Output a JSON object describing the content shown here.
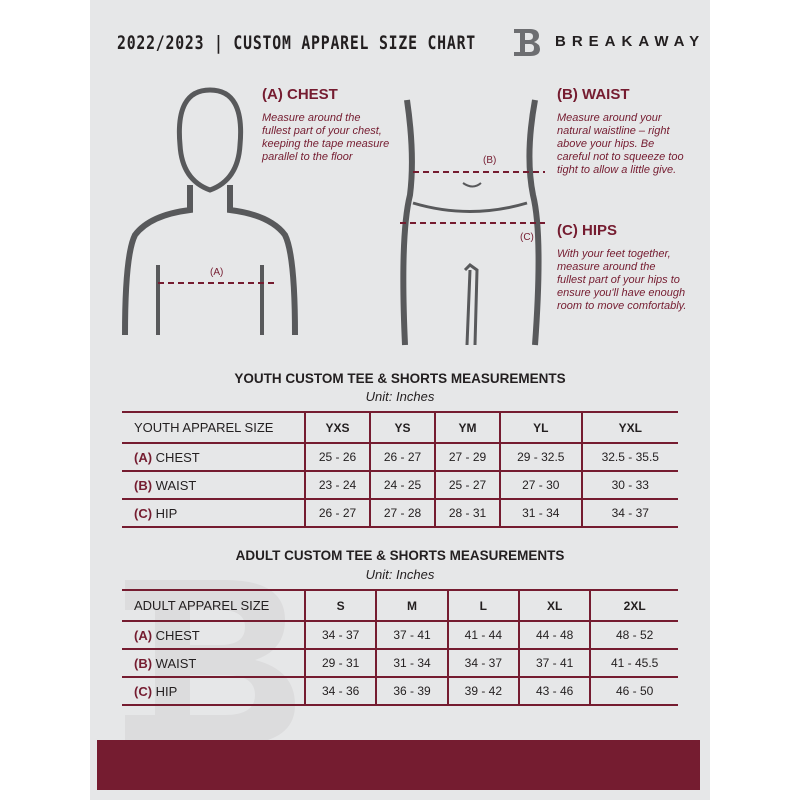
{
  "header": {
    "title": "2022/2023  |  CUSTOM APPAREL SIZE CHART",
    "brand": "BREAKAWAY"
  },
  "measures": [
    {
      "heading": "(A) CHEST",
      "desc": "Measure around the fullest part of your chest, keeping the tape measure parallel to the floor",
      "mark": "(A)"
    },
    {
      "heading": "(B) WAIST",
      "desc": "Measure around your natural waistline – right above your hips. Be careful not to squeeze too tight to allow a little give.",
      "mark": "(B)"
    },
    {
      "heading": "(C) HIPS",
      "desc": "With your feet together, measure around the fullest part of your hips to ensure you'll have enough room to move comfortably.",
      "mark": "(C)"
    }
  ],
  "youth": {
    "title": "YOUTH CUSTOM TEE & SHORTS MEASUREMENTS",
    "unit": "Unit: Inches",
    "size_label": "YOUTH APPAREL SIZE",
    "sizes": [
      "YXS",
      "YS",
      "YM",
      "YL",
      "YXL"
    ],
    "rows": [
      {
        "letter": "(A)",
        "name": "CHEST",
        "values": [
          "25 - 26",
          "26 - 27",
          "27 - 29",
          "29 - 32.5",
          "32.5 - 35.5"
        ]
      },
      {
        "letter": "(B)",
        "name": "WAIST",
        "values": [
          "23 - 24",
          "24 - 25",
          "25 - 27",
          "27 - 30",
          "30 - 33"
        ]
      },
      {
        "letter": "(C)",
        "name": "HIP",
        "values": [
          "26 - 27",
          "27 - 28",
          "28 - 31",
          "31 - 34",
          "34 - 37"
        ]
      }
    ]
  },
  "adult": {
    "title": "ADULT CUSTOM TEE & SHORTS MEASUREMENTS",
    "unit": "Unit: Inches",
    "size_label": "ADULT APPAREL SIZE",
    "sizes": [
      "S",
      "M",
      "L",
      "XL",
      "2XL"
    ],
    "rows": [
      {
        "letter": "(A)",
        "name": "CHEST",
        "values": [
          "34 - 37",
          "37 - 41",
          "41 - 44",
          "44 - 48",
          "48 - 52"
        ]
      },
      {
        "letter": "(B)",
        "name": "WAIST",
        "values": [
          "29 - 31",
          "31 - 34",
          "34 - 37",
          "37 - 41",
          "41 - 45.5"
        ]
      },
      {
        "letter": "(C)",
        "name": "HIP",
        "values": [
          "34 - 36",
          "36 - 39",
          "39 - 42",
          "43 - 46",
          "46 - 50"
        ]
      }
    ]
  },
  "colors": {
    "accent": "#751c30",
    "background": "#e6e7e8"
  }
}
